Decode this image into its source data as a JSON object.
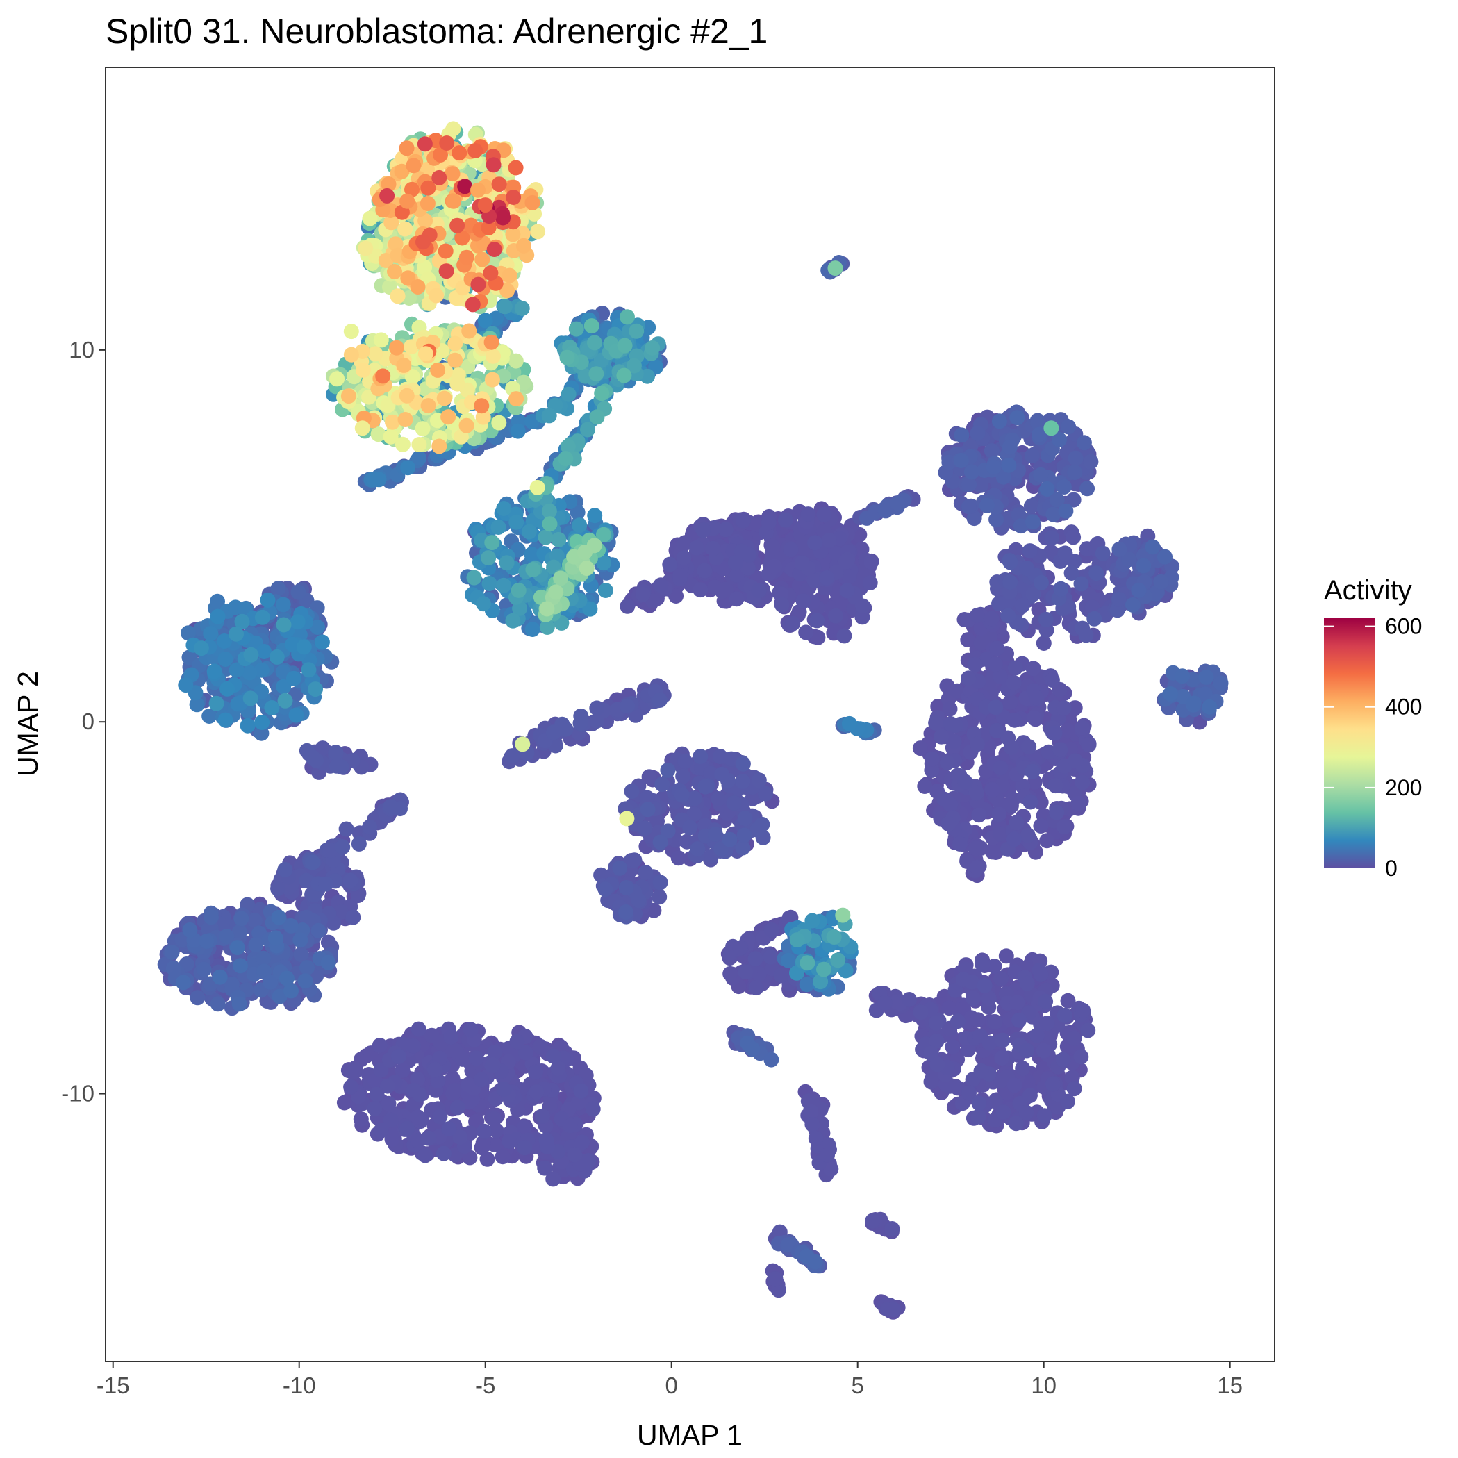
{
  "chart_data": {
    "type": "scatter",
    "title": "Split0 31. Neuroblastoma: Adrenergic #2_1",
    "xlabel": "UMAP 1",
    "ylabel": "UMAP 2",
    "xlim": [
      -15.2,
      16.2
    ],
    "ylim": [
      -17.2,
      17.6
    ],
    "x_ticks": [
      -15,
      -10,
      -5,
      0,
      5,
      10,
      15
    ],
    "x_tick_labels": [
      "-15",
      "-10",
      "-5",
      "0",
      "5",
      "10",
      "15"
    ],
    "y_ticks": [
      -10,
      0,
      10
    ],
    "y_tick_labels": [
      "-10",
      "0",
      "10"
    ],
    "grid": false,
    "color_scale": {
      "title": "Activity",
      "palette": "Spectral (reversed)",
      "min": 0,
      "max": 620,
      "ticks": [
        0,
        200,
        400,
        600
      ],
      "tick_labels": [
        "0",
        "200",
        "400",
        "600"
      ],
      "colors": [
        "#5e4fa2",
        "#3288bd",
        "#66c2a5",
        "#abdda4",
        "#e6f598",
        "#fee08b",
        "#fdae61",
        "#f46d43",
        "#d53e4f",
        "#9e0142"
      ]
    },
    "legend_position": "right",
    "clusters": [
      {
        "name": "c1",
        "cx": -5.8,
        "cy": 13.5,
        "rx": 2.2,
        "ry": 2.4,
        "activity": 300,
        "n": 420
      },
      {
        "name": "c2",
        "cx": -6.7,
        "cy": 12.8,
        "rx": 1.6,
        "ry": 1.6,
        "activity": 180,
        "n": 180
      },
      {
        "name": "c3",
        "cx": -6.5,
        "cy": 9.0,
        "rx": 2.6,
        "ry": 1.6,
        "activity": 230,
        "n": 340
      },
      {
        "name": "c4",
        "cx": -1.6,
        "cy": 10.0,
        "rx": 1.3,
        "ry": 1.0,
        "activity": 70,
        "n": 160
      },
      {
        "name": "c5",
        "cx": -3.5,
        "cy": 4.3,
        "rx": 2.0,
        "ry": 1.8,
        "activity": 60,
        "n": 240
      },
      {
        "name": "c6",
        "cx": 2.4,
        "cy": 4.4,
        "rx": 2.6,
        "ry": 1.2,
        "activity": 5,
        "n": 260
      },
      {
        "name": "c7",
        "cx": 4.0,
        "cy": 4.0,
        "rx": 1.4,
        "ry": 1.8,
        "activity": 5,
        "n": 160
      },
      {
        "name": "c8",
        "cx": 9.3,
        "cy": 6.8,
        "rx": 2.0,
        "ry": 1.6,
        "activity": 15,
        "n": 260
      },
      {
        "name": "c9",
        "cx": 12.7,
        "cy": 4.0,
        "rx": 0.8,
        "ry": 1.0,
        "activity": 15,
        "n": 90
      },
      {
        "name": "c10",
        "cx": 10.5,
        "cy": 3.6,
        "rx": 1.8,
        "ry": 1.5,
        "activity": 10,
        "n": 150
      },
      {
        "name": "c11",
        "cx": 9.0,
        "cy": -1.0,
        "rx": 2.3,
        "ry": 2.6,
        "activity": 5,
        "n": 380
      },
      {
        "name": "c12",
        "cx": 14.0,
        "cy": 0.8,
        "rx": 0.8,
        "ry": 0.8,
        "activity": 20,
        "n": 70
      },
      {
        "name": "c13",
        "cx": -11.2,
        "cy": 1.6,
        "rx": 2.0,
        "ry": 1.8,
        "activity": 45,
        "n": 260
      },
      {
        "name": "c14",
        "cx": -10.3,
        "cy": 2.4,
        "rx": 1.0,
        "ry": 1.4,
        "activity": 20,
        "n": 90
      },
      {
        "name": "c15",
        "cx": 0.8,
        "cy": -2.3,
        "rx": 2.0,
        "ry": 1.5,
        "activity": 10,
        "n": 200
      },
      {
        "name": "c16",
        "cx": -1.1,
        "cy": -4.5,
        "rx": 0.8,
        "ry": 0.8,
        "activity": 10,
        "n": 70
      },
      {
        "name": "c17",
        "cx": -11.3,
        "cy": -6.3,
        "rx": 2.3,
        "ry": 1.4,
        "activity": 20,
        "n": 280
      },
      {
        "name": "c18",
        "cx": -9.5,
        "cy": -4.6,
        "rx": 1.2,
        "ry": 1.0,
        "activity": 10,
        "n": 80
      },
      {
        "name": "c19",
        "cx": -5.4,
        "cy": -10.0,
        "rx": 3.4,
        "ry": 1.8,
        "activity": 5,
        "n": 460
      },
      {
        "name": "c20",
        "cx": -2.8,
        "cy": -11.6,
        "rx": 0.8,
        "ry": 0.7,
        "activity": 5,
        "n": 50
      },
      {
        "name": "c21",
        "cx": 9.0,
        "cy": -8.6,
        "rx": 2.2,
        "ry": 2.4,
        "activity": 5,
        "n": 330
      },
      {
        "name": "c22",
        "cx": 4.0,
        "cy": -6.2,
        "rx": 0.9,
        "ry": 1.1,
        "activity": 60,
        "n": 90
      },
      {
        "name": "c23",
        "cx": 2.8,
        "cy": -6.7,
        "rx": 1.2,
        "ry": 0.6,
        "activity": 5,
        "n": 70
      }
    ],
    "streaks": [
      {
        "name": "s1",
        "x0": -6.5,
        "y0": 8.7,
        "x1": -4.0,
        "y1": 11.5,
        "w": 0.25,
        "activity": 60,
        "n": 60
      },
      {
        "name": "s2",
        "x0": -8.2,
        "y0": 6.4,
        "x1": -3.5,
        "y1": 8.2,
        "w": 0.18,
        "activity": 40,
        "n": 70
      },
      {
        "name": "s3",
        "x0": -3.3,
        "y0": 8.2,
        "x1": -1.0,
        "y1": 10.5,
        "w": 0.2,
        "activity": 60,
        "n": 60
      },
      {
        "name": "s4",
        "x0": -3.8,
        "y0": 5.8,
        "x1": -1.2,
        "y1": 9.5,
        "w": 0.2,
        "activity": 80,
        "n": 60
      },
      {
        "name": "s5",
        "x0": -3.5,
        "y0": 3.0,
        "x1": -2.0,
        "y1": 5.0,
        "w": 0.35,
        "activity": 130,
        "n": 70
      },
      {
        "name": "s6",
        "x0": -1.0,
        "y0": 3.2,
        "x1": 2.0,
        "y1": 4.8,
        "w": 0.3,
        "activity": 5,
        "n": 70
      },
      {
        "name": "s7",
        "x0": 5.0,
        "y0": 5.5,
        "x1": 6.5,
        "y1": 6.0,
        "w": 0.1,
        "activity": 15,
        "n": 25
      },
      {
        "name": "s8",
        "x0": 8.5,
        "y0": 3.0,
        "x1": 8.5,
        "y1": 1.0,
        "w": 0.6,
        "activity": 5,
        "n": 60
      },
      {
        "name": "s9",
        "x0": 7.4,
        "y0": -2.5,
        "x1": 8.3,
        "y1": -4.2,
        "w": 0.15,
        "activity": 5,
        "n": 30
      },
      {
        "name": "s10",
        "x0": -4.5,
        "y0": -1.0,
        "x1": -0.2,
        "y1": 0.8,
        "w": 0.3,
        "activity": 10,
        "n": 70
      },
      {
        "name": "s11",
        "x0": -9.7,
        "y0": -1.0,
        "x1": -8.2,
        "y1": -1.0,
        "w": 0.3,
        "activity": 10,
        "n": 30
      },
      {
        "name": "s12",
        "x0": -10.3,
        "y0": -4.3,
        "x1": -7.3,
        "y1": -2.2,
        "w": 0.2,
        "activity": 10,
        "n": 60
      },
      {
        "name": "s13",
        "x0": 1.5,
        "y0": -6.3,
        "x1": 3.2,
        "y1": -5.3,
        "w": 0.15,
        "activity": 5,
        "n": 40
      },
      {
        "name": "s14",
        "x0": 5.6,
        "y0": -7.5,
        "x1": 7.0,
        "y1": -7.8,
        "w": 0.25,
        "activity": 5,
        "n": 40
      },
      {
        "name": "s15",
        "x0": 3.7,
        "y0": -10.0,
        "x1": 4.2,
        "y1": -12.0,
        "w": 0.25,
        "activity": 5,
        "n": 35
      },
      {
        "name": "s16",
        "x0": 2.8,
        "y0": -13.8,
        "x1": 4.0,
        "y1": -14.6,
        "w": 0.15,
        "activity": 20,
        "n": 30
      },
      {
        "name": "s17",
        "x0": 1.5,
        "y0": -8.3,
        "x1": 2.7,
        "y1": -9.0,
        "w": 0.15,
        "activity": 20,
        "n": 20
      },
      {
        "name": "s18",
        "x0": 5.5,
        "y0": -15.6,
        "x1": 6.0,
        "y1": -15.8,
        "w": 0.1,
        "activity": 5,
        "n": 14
      },
      {
        "name": "s19",
        "x0": 5.3,
        "y0": -13.3,
        "x1": 6.0,
        "y1": -13.8,
        "w": 0.1,
        "activity": 5,
        "n": 14
      },
      {
        "name": "s20",
        "x0": 4.2,
        "y0": 12.1,
        "x1": 4.6,
        "y1": 12.4,
        "w": 0.08,
        "activity": 20,
        "n": 8
      },
      {
        "name": "s21",
        "x0": 4.5,
        "y0": 0.0,
        "x1": 5.4,
        "y1": -0.3,
        "w": 0.1,
        "activity": 40,
        "n": 12
      },
      {
        "name": "s22",
        "x0": 2.7,
        "y0": -14.6,
        "x1": 2.9,
        "y1": -15.4,
        "w": 0.08,
        "activity": 5,
        "n": 8
      }
    ],
    "hotspots": [
      {
        "x": -4.95,
        "y": 13.8,
        "activity": 610
      },
      {
        "x": -5.55,
        "y": 14.4,
        "activity": 600
      },
      {
        "x": -4.9,
        "y": 13.6,
        "activity": 560
      },
      {
        "x": -5.0,
        "y": 13.9,
        "activity": 500
      },
      {
        "x": -5.7,
        "y": 15.3,
        "activity": 480
      },
      {
        "x": -7.1,
        "y": 14.0,
        "activity": 440
      },
      {
        "x": -5.85,
        "y": 14.0,
        "activity": 430
      },
      {
        "x": -5.2,
        "y": 14.3,
        "activity": 420
      },
      {
        "x": -5.1,
        "y": 8.5,
        "activity": 450
      },
      {
        "x": -6.0,
        "y": 8.2,
        "activity": 400
      },
      {
        "x": -6.1,
        "y": 8.7,
        "activity": 380
      },
      {
        "x": -6.6,
        "y": 9.9,
        "activity": 350
      },
      {
        "x": -8.6,
        "y": 10.5,
        "activity": 280
      },
      {
        "x": -8.3,
        "y": 7.9,
        "activity": 300
      },
      {
        "x": -3.6,
        "y": 6.3,
        "activity": 280
      },
      {
        "x": -1.2,
        "y": -2.6,
        "activity": 280
      },
      {
        "x": -4.0,
        "y": -0.6,
        "activity": 260
      },
      {
        "x": 4.4,
        "y": 12.2,
        "activity": 160
      },
      {
        "x": 10.2,
        "y": 7.9,
        "activity": 140
      },
      {
        "x": 4.6,
        "y": -5.2,
        "activity": 180
      }
    ],
    "seed": 31
  }
}
